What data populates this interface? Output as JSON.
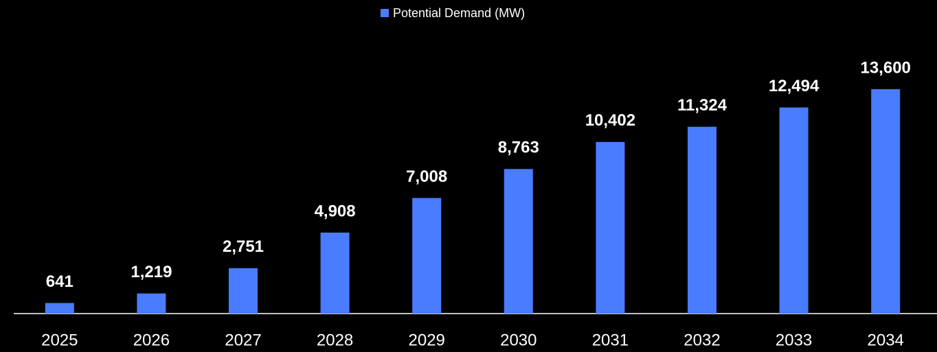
{
  "chart_data": {
    "type": "bar",
    "categories": [
      "2025",
      "2026",
      "2027",
      "2028",
      "2029",
      "2030",
      "2031",
      "2032",
      "2033",
      "2034"
    ],
    "series": [
      {
        "name": "Potential Demand (MW)",
        "color": "#4a7cff",
        "values": [
          641,
          1219,
          2751,
          4908,
          7008,
          8763,
          10402,
          11324,
          12494,
          13600
        ],
        "value_labels": [
          "641",
          "1,219",
          "2,751",
          "4,908",
          "7,008",
          "8,763",
          "10,402",
          "11,324",
          "12,494",
          "13,600"
        ]
      }
    ],
    "legend": "top"
  }
}
